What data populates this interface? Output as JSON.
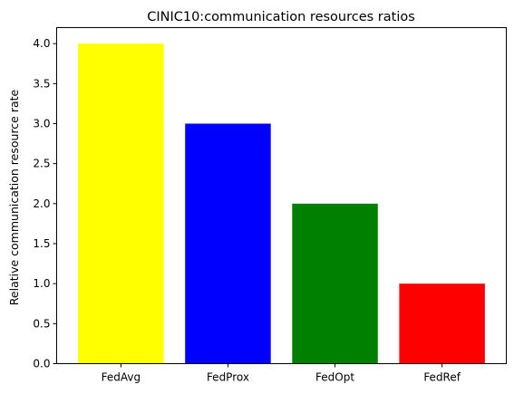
{
  "chart_data": {
    "type": "bar",
    "title": "CINIC10:communication resources ratios",
    "xlabel": "",
    "ylabel": "Relative communication resource rate",
    "categories": [
      "FedAvg",
      "FedProx",
      "FedOpt",
      "FedRef"
    ],
    "values": [
      4.0,
      3.0,
      2.0,
      1.0
    ],
    "colors": [
      "#ffff00",
      "#0000ff",
      "#008000",
      "#ff0000"
    ],
    "ylim": [
      0,
      4.2
    ],
    "yticks": [
      0.0,
      0.5,
      1.0,
      1.5,
      2.0,
      2.5,
      3.0,
      3.5,
      4.0
    ],
    "ytick_labels": [
      "0.0",
      "0.5",
      "1.0",
      "1.5",
      "2.0",
      "2.5",
      "3.0",
      "3.5",
      "4.0"
    ],
    "grid": false,
    "legend": "none"
  }
}
